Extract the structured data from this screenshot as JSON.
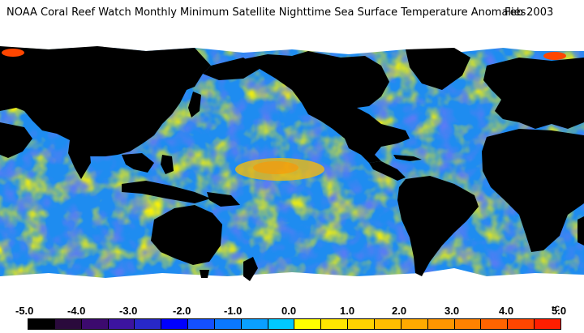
{
  "title": {
    "main": "NOAA Coral Reef Watch Monthly Minimum Satellite Nighttime Sea Surface Temperature Anomalies",
    "date": "Feb 2003"
  },
  "legend": {
    "ticks": [
      "-5.0",
      "-4.0",
      "-3.0",
      "-2.0",
      "-1.0",
      "0.0",
      "1.0",
      "2.0",
      "3.0",
      "4.0",
      "5.0"
    ],
    "unit": "°C",
    "colors": [
      "#000000",
      "#2a0a3c",
      "#3c0a6e",
      "#3c14a0",
      "#2828c8",
      "#0000ff",
      "#1450ff",
      "#0a78ff",
      "#0aa0ff",
      "#00c8ff",
      "#ffff00",
      "#ffe600",
      "#ffd200",
      "#ffbe00",
      "#ffaa00",
      "#ff9600",
      "#ff8200",
      "#ff6400",
      "#ff4600",
      "#ff1e00"
    ]
  },
  "map_colors": {
    "land": "#000000",
    "ice": "#ffffff",
    "ocean_base": "#1e8cf0"
  }
}
